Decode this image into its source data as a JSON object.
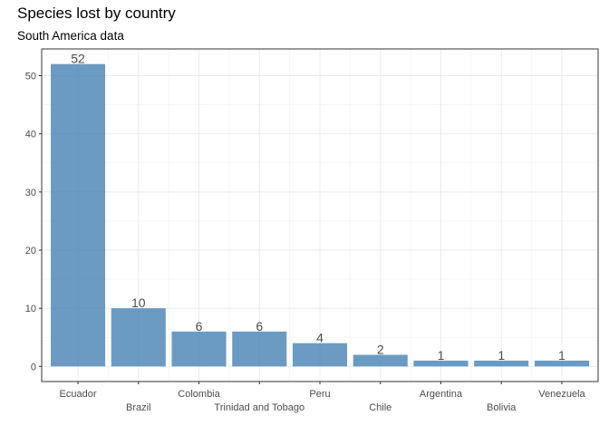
{
  "chart_data": {
    "type": "bar",
    "title": "Species lost by country",
    "subtitle": "South America data",
    "xlabel": "",
    "ylabel": "",
    "categories": [
      "Ecuador",
      "Brazil",
      "Colombia",
      "Trinidad and Tobago",
      "Peru",
      "Chile",
      "Argentina",
      "Bolivia",
      "Venezuela"
    ],
    "values": [
      52,
      10,
      6,
      6,
      4,
      2,
      1,
      1,
      1
    ],
    "data_labels": [
      "52",
      "10",
      "6",
      "6",
      "4",
      "2",
      "1",
      "1",
      "1"
    ],
    "y_ticks": [
      0,
      10,
      20,
      30,
      40,
      50
    ],
    "y_tick_labels": [
      "0",
      "10",
      "20",
      "30",
      "40",
      "50"
    ],
    "ylim": [
      -2.6,
      54.6
    ],
    "grid": true,
    "bar_color": "#4682B4",
    "legend": "none"
  }
}
